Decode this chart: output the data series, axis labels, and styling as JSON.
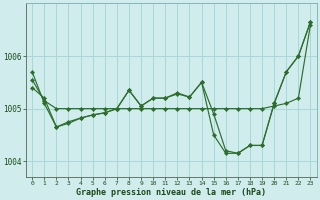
{
  "bg_color": "#d0ecec",
  "grid_color": "#a8d8d8",
  "line_color": "#2d6e2d",
  "marker_color": "#2d6e2d",
  "xlabel": "Graphe pression niveau de la mer (hPa)",
  "xlabel_color": "#1a4a1a",
  "tick_color": "#1a4a1a",
  "xlim": [
    -0.5,
    23.5
  ],
  "ylim": [
    1003.7,
    1007.0
  ],
  "yticks": [
    1004,
    1005,
    1006
  ],
  "xticks": [
    0,
    1,
    2,
    3,
    4,
    5,
    6,
    7,
    8,
    9,
    10,
    11,
    12,
    13,
    14,
    15,
    16,
    17,
    18,
    19,
    20,
    21,
    22,
    23
  ],
  "line1_x": [
    0,
    1,
    2,
    3,
    4,
    5,
    6,
    7,
    8,
    9,
    10,
    11,
    12,
    13,
    14,
    15,
    16,
    17,
    18,
    19,
    20,
    21,
    22,
    23
  ],
  "line1_y": [
    1005.55,
    1005.15,
    1005.0,
    1005.0,
    1005.0,
    1005.0,
    1005.0,
    1005.0,
    1005.0,
    1005.0,
    1005.0,
    1005.0,
    1005.0,
    1005.0,
    1005.0,
    1005.0,
    1005.0,
    1005.0,
    1005.0,
    1005.0,
    1005.05,
    1005.1,
    1005.2,
    1006.6
  ],
  "line2_x": [
    0,
    1,
    2,
    3,
    4,
    5,
    6,
    7,
    8,
    9,
    10,
    11,
    12,
    13,
    14,
    15,
    16,
    17,
    18,
    19,
    20,
    21,
    22,
    23
  ],
  "line2_y": [
    1005.7,
    1005.1,
    1004.65,
    1004.75,
    1004.82,
    1004.88,
    1004.92,
    1005.0,
    1005.35,
    1005.05,
    1005.2,
    1005.2,
    1005.28,
    1005.22,
    1005.5,
    1004.9,
    1004.2,
    1004.15,
    1004.3,
    1004.3,
    1005.1,
    1005.7,
    1006.0,
    1006.65
  ],
  "line3_x": [
    0,
    1,
    2,
    3,
    4,
    5,
    6,
    7,
    8,
    9,
    10,
    11,
    12,
    13,
    14,
    15,
    16,
    17,
    18,
    19,
    20,
    21,
    22,
    23
  ],
  "line3_y": [
    1005.4,
    1005.2,
    1004.65,
    1004.72,
    1004.82,
    1004.88,
    1004.92,
    1005.0,
    1005.35,
    1005.05,
    1005.2,
    1005.2,
    1005.3,
    1005.22,
    1005.5,
    1004.5,
    1004.15,
    1004.15,
    1004.3,
    1004.3,
    1005.1,
    1005.7,
    1006.0,
    1006.65
  ]
}
